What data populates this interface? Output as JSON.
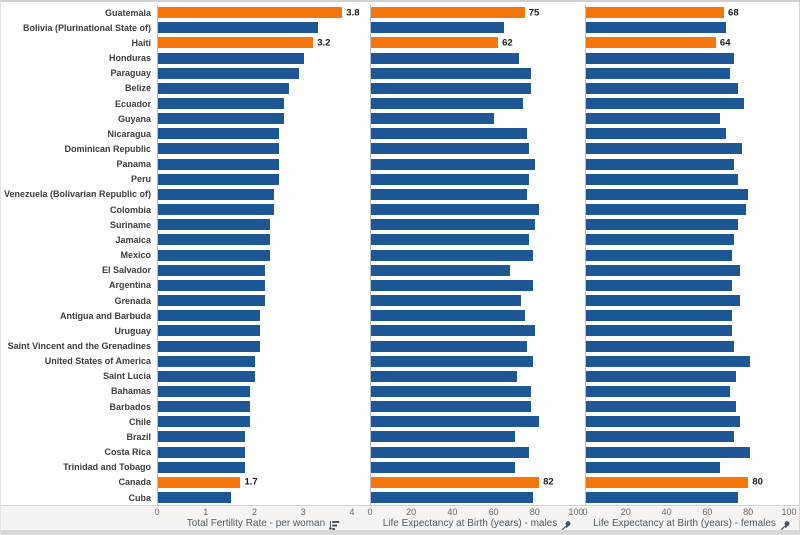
{
  "chart_data": {
    "type": "bar",
    "orientation": "horizontal",
    "grid": "off",
    "legend": "none",
    "categories": [
      "Guatemala",
      "Bolivia (Plurinational State of)",
      "Haiti",
      "Honduras",
      "Paraguay",
      "Belize",
      "Ecuador",
      "Guyana",
      "Nicaragua",
      "Dominican Republic",
      "Panama",
      "Peru",
      "Venezuela (Bolivarian Republic of)",
      "Colombia",
      "Suriname",
      "Jamaica",
      "Mexico",
      "El Salvador",
      "Argentina",
      "Grenada",
      "Antigua and Barbuda",
      "Uruguay",
      "Saint Vincent and the Grenadines",
      "United States of America",
      "Saint Lucia",
      "Bahamas",
      "Barbados",
      "Chile",
      "Brazil",
      "Costa Rica",
      "Trinidad and Tobago",
      "Canada",
      "Cuba"
    ],
    "series": [
      {
        "name": "Total Fertility Rate - per woman",
        "axis": {
          "min": 0,
          "max": 4,
          "ticks": [
            0,
            1,
            2,
            3,
            4
          ]
        },
        "values": [
          3.8,
          3.3,
          3.2,
          3.0,
          2.9,
          2.7,
          2.6,
          2.6,
          2.5,
          2.5,
          2.5,
          2.5,
          2.4,
          2.4,
          2.3,
          2.3,
          2.3,
          2.2,
          2.2,
          2.2,
          2.1,
          2.1,
          2.1,
          2.0,
          2.0,
          1.9,
          1.9,
          1.9,
          1.8,
          1.8,
          1.8,
          1.7,
          1.5
        ]
      },
      {
        "name": "Life Expectancy at Birth (years) - males",
        "axis": {
          "min": 0,
          "max": 100,
          "ticks": [
            0,
            20,
            40,
            60,
            80,
            100
          ]
        },
        "values": [
          75,
          65,
          62,
          72,
          78,
          78,
          74,
          60,
          76,
          77,
          80,
          77,
          76,
          82,
          80,
          77,
          79,
          68,
          79,
          73,
          75,
          80,
          76,
          79,
          71,
          78,
          78,
          82,
          70,
          77,
          70,
          82,
          79
        ]
      },
      {
        "name": "Life Expectancy at Birth (years) - females",
        "axis": {
          "min": 0,
          "max": 100,
          "ticks": [
            0,
            20,
            40,
            60,
            80,
            100
          ]
        },
        "values": [
          68,
          69,
          64,
          73,
          71,
          75,
          78,
          66,
          69,
          77,
          73,
          75,
          80,
          79,
          75,
          73,
          72,
          76,
          72,
          76,
          72,
          72,
          73,
          81,
          74,
          71,
          74,
          76,
          73,
          81,
          66,
          80,
          75
        ]
      }
    ],
    "highlighted_indexes": [
      0,
      2,
      31
    ],
    "value_labels": {
      "0": [
        "3.8",
        "75",
        "68"
      ],
      "2": [
        "3.2",
        "62",
        "64"
      ],
      "31": [
        "1.7",
        "82",
        "80"
      ]
    },
    "colors": {
      "bar": "#1E5796",
      "highlight": "#F5760B",
      "axis_text": "#666666",
      "label_text": "#3c3c3c"
    },
    "icons": {
      "fertility_axis": "sort-descending-icon",
      "life_expectancy_axes": "pushpin-icon"
    }
  }
}
